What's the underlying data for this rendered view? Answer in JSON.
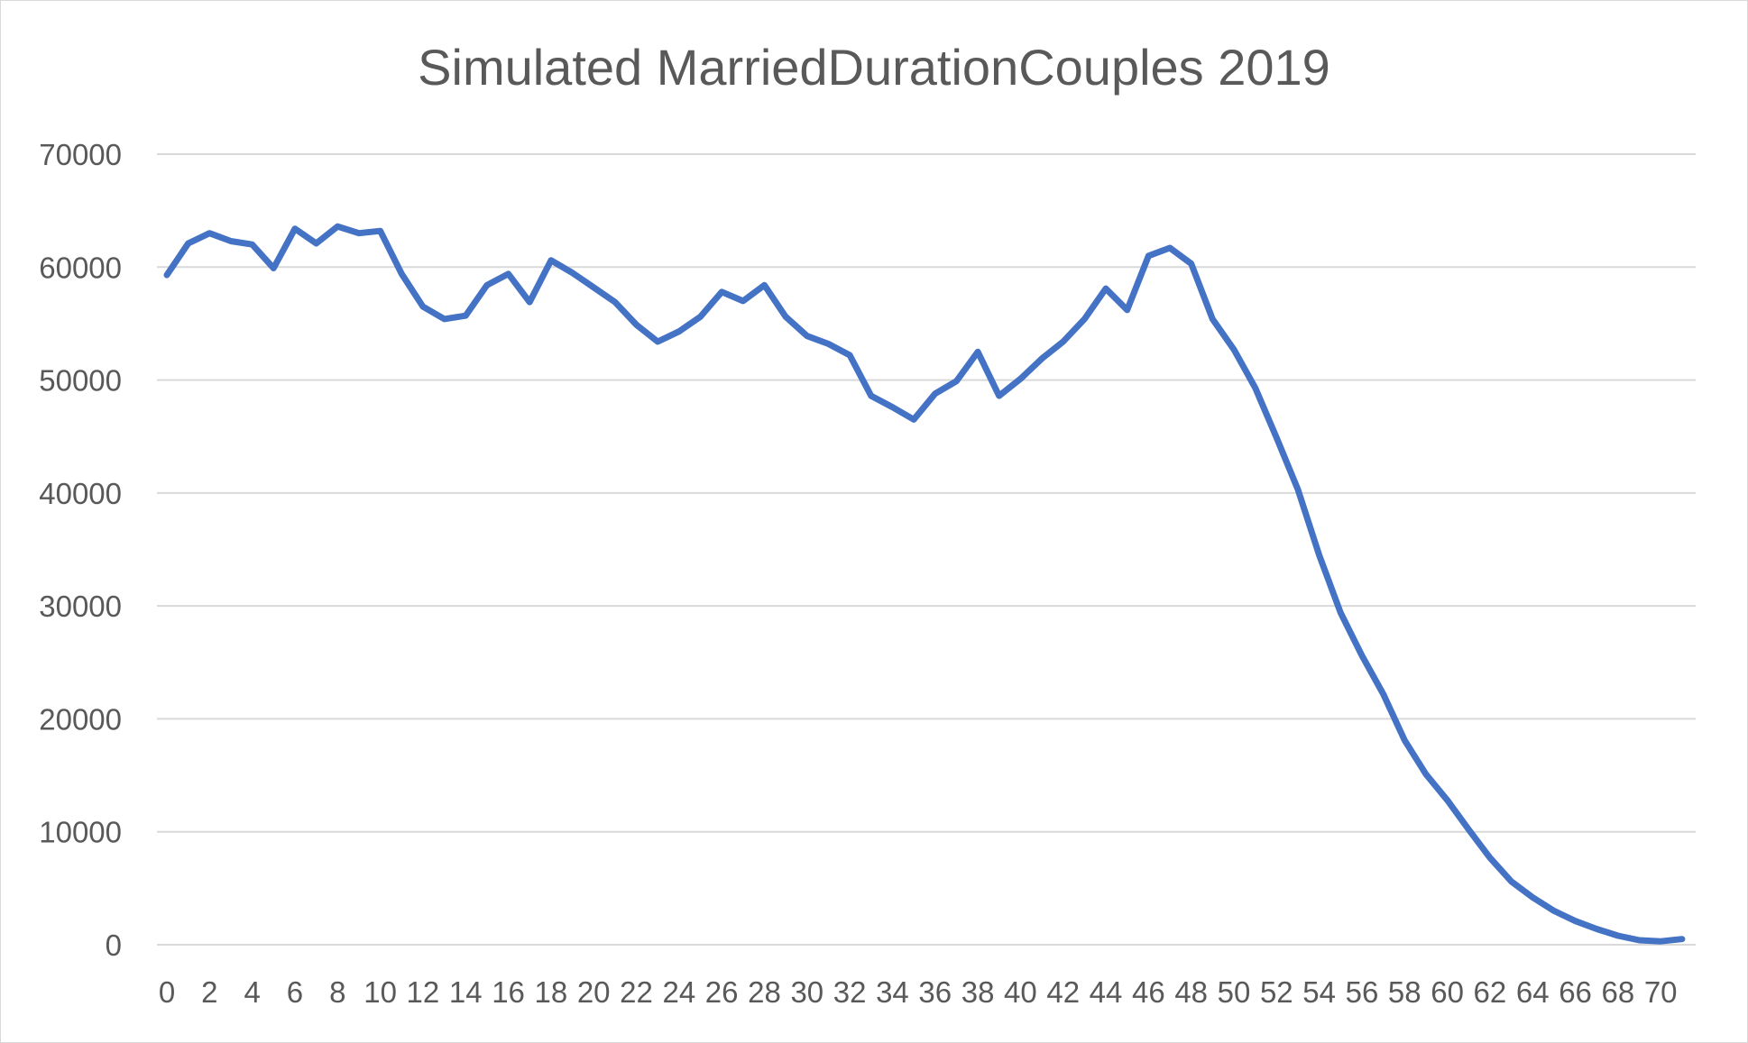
{
  "chart_data": {
    "type": "line",
    "title": "Simulated MarriedDurationCouples 2019",
    "xlabel": "",
    "ylabel": "",
    "ylim": [
      0,
      70000
    ],
    "yticks": [
      0,
      10000,
      20000,
      30000,
      40000,
      50000,
      60000,
      70000
    ],
    "xticks": [
      0,
      2,
      4,
      6,
      8,
      10,
      12,
      14,
      16,
      18,
      20,
      22,
      24,
      26,
      28,
      30,
      32,
      34,
      36,
      38,
      40,
      42,
      44,
      46,
      48,
      50,
      52,
      54,
      56,
      58,
      60,
      62,
      64,
      66,
      68,
      70
    ],
    "grid": true,
    "legend": "none",
    "line_color": "#4472C4",
    "grid_color": "#d9d9d9",
    "series": [
      {
        "x": [
          0,
          1,
          2,
          3,
          4,
          5,
          6,
          7,
          8,
          9,
          10,
          11,
          12,
          13,
          14,
          15,
          16,
          17,
          18,
          19,
          20,
          21,
          22,
          23,
          24,
          25,
          26,
          27,
          28,
          29,
          30,
          31,
          32,
          33,
          34,
          35,
          36,
          37,
          38,
          39,
          40,
          41,
          42,
          43,
          44,
          45,
          46,
          47,
          48,
          49,
          50,
          51,
          52,
          53,
          54,
          55,
          56,
          57,
          58,
          59,
          60,
          61,
          62,
          63,
          64,
          65,
          66,
          67,
          68,
          69,
          70,
          71
        ],
        "values": [
          59300,
          62100,
          63000,
          62300,
          62000,
          59900,
          63400,
          62100,
          63600,
          63000,
          63200,
          59400,
          56500,
          55400,
          55700,
          58400,
          59400,
          56900,
          60600,
          59500,
          58200,
          56900,
          54900,
          53400,
          54300,
          55600,
          57800,
          57000,
          58400,
          55600,
          53900,
          53200,
          52200,
          48600,
          47600,
          46500,
          48800,
          49900,
          52500,
          48600,
          50100,
          51900,
          53400,
          55400,
          58100,
          56200,
          61000,
          61700,
          60300,
          55400,
          52700,
          49300,
          44900,
          40300,
          34500,
          29400,
          25600,
          22200,
          18100,
          15100,
          12800,
          10200,
          7700,
          5600,
          4200,
          3000,
          2100,
          1400,
          800,
          400,
          300,
          500
        ]
      }
    ]
  }
}
